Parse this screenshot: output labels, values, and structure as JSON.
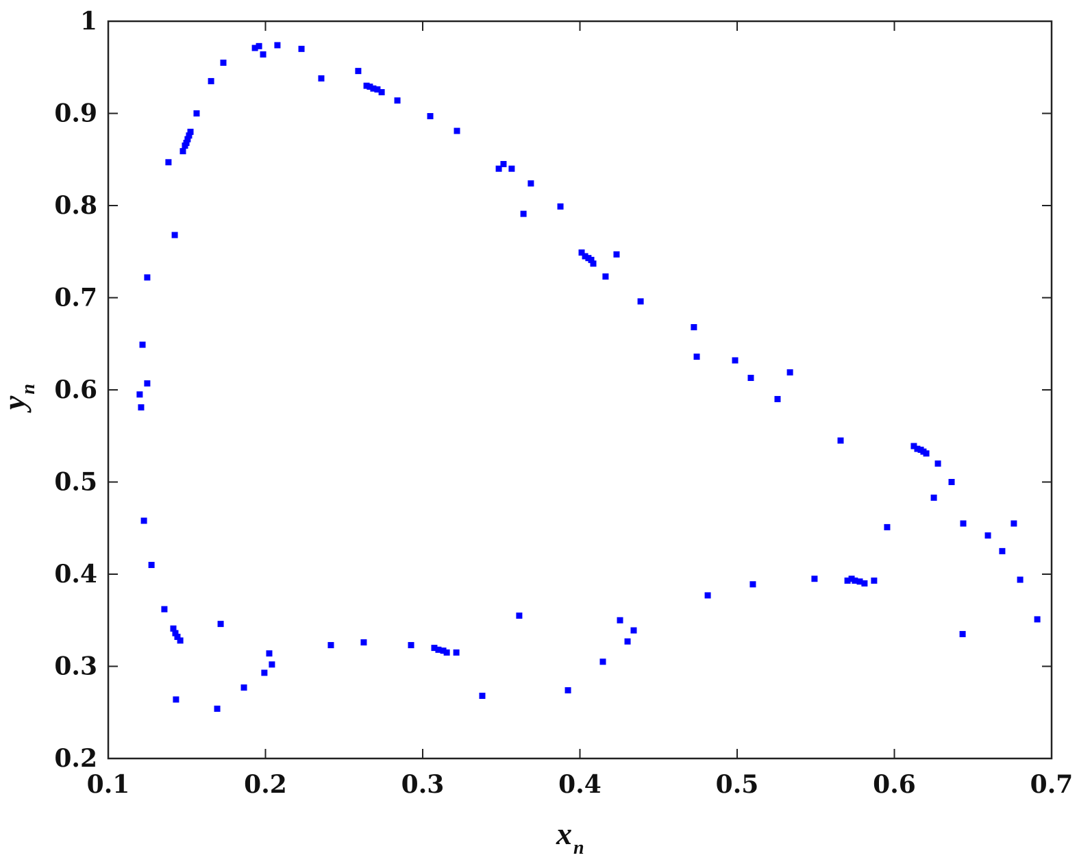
{
  "chart_data": {
    "type": "scatter",
    "title": "",
    "xlabel": "x",
    "xlabel_subscript": "n",
    "ylabel": "y",
    "ylabel_subscript": "n",
    "xlim": [
      0.1,
      0.7
    ],
    "ylim": [
      0.2,
      1.0
    ],
    "xticks": [
      "0.1",
      "0.2",
      "0.3",
      "0.4",
      "0.5",
      "0.6",
      "0.7"
    ],
    "yticks": [
      "0.2",
      "0.3",
      "0.4",
      "0.5",
      "0.6",
      "0.7",
      "0.8",
      "0.9",
      "1"
    ],
    "grid": false,
    "marker_color": "#0000ff",
    "marker": "square",
    "points": [
      [
        0.1933,
        0.971
      ],
      [
        0.1959,
        0.973
      ],
      [
        0.1985,
        0.964
      ],
      [
        0.2076,
        0.974
      ],
      [
        0.2229,
        0.97
      ],
      [
        0.2355,
        0.938
      ],
      [
        0.259,
        0.946
      ],
      [
        0.2643,
        0.93
      ],
      [
        0.2664,
        0.929
      ],
      [
        0.2686,
        0.927
      ],
      [
        0.2712,
        0.926
      ],
      [
        0.2739,
        0.923
      ],
      [
        0.2839,
        0.914
      ],
      [
        0.3048,
        0.897
      ],
      [
        0.3218,
        0.881
      ],
      [
        0.3484,
        0.84
      ],
      [
        0.3514,
        0.845
      ],
      [
        0.3566,
        0.84
      ],
      [
        0.3688,
        0.824
      ],
      [
        0.3641,
        0.791
      ],
      [
        0.3876,
        0.799
      ],
      [
        0.4011,
        0.749
      ],
      [
        0.4033,
        0.745
      ],
      [
        0.4054,
        0.743
      ],
      [
        0.4072,
        0.741
      ],
      [
        0.4085,
        0.737
      ],
      [
        0.4233,
        0.747
      ],
      [
        0.4163,
        0.723
      ],
      [
        0.4386,
        0.696
      ],
      [
        0.4725,
        0.668
      ],
      [
        0.4743,
        0.636
      ],
      [
        0.4987,
        0.632
      ],
      [
        0.5087,
        0.613
      ],
      [
        0.5257,
        0.59
      ],
      [
        0.5336,
        0.619
      ],
      [
        0.5658,
        0.545
      ],
      [
        0.6124,
        0.539
      ],
      [
        0.6146,
        0.536
      ],
      [
        0.6168,
        0.535
      ],
      [
        0.6185,
        0.533
      ],
      [
        0.6203,
        0.531
      ],
      [
        0.6277,
        0.52
      ],
      [
        0.6364,
        0.5
      ],
      [
        0.6251,
        0.483
      ],
      [
        0.6438,
        0.455
      ],
      [
        0.6595,
        0.442
      ],
      [
        0.676,
        0.455
      ],
      [
        0.6686,
        0.425
      ],
      [
        0.68,
        0.394
      ],
      [
        0.6909,
        0.351
      ],
      [
        0.6434,
        0.335
      ],
      [
        0.5954,
        0.451
      ],
      [
        0.5871,
        0.393
      ],
      [
        0.581,
        0.39
      ],
      [
        0.578,
        0.392
      ],
      [
        0.5749,
        0.393
      ],
      [
        0.5728,
        0.395
      ],
      [
        0.5702,
        0.393
      ],
      [
        0.5492,
        0.395
      ],
      [
        0.51,
        0.389
      ],
      [
        0.4813,
        0.377
      ],
      [
        0.4255,
        0.35
      ],
      [
        0.4342,
        0.339
      ],
      [
        0.4303,
        0.327
      ],
      [
        0.4146,
        0.305
      ],
      [
        0.3924,
        0.274
      ],
      [
        0.3614,
        0.355
      ],
      [
        0.3379,
        0.268
      ],
      [
        0.3214,
        0.315
      ],
      [
        0.3153,
        0.315
      ],
      [
        0.3131,
        0.317
      ],
      [
        0.31,
        0.318
      ],
      [
        0.3074,
        0.32
      ],
      [
        0.2926,
        0.323
      ],
      [
        0.2625,
        0.326
      ],
      [
        0.2416,
        0.323
      ],
      [
        0.2024,
        0.314
      ],
      [
        0.2041,
        0.302
      ],
      [
        0.1993,
        0.293
      ],
      [
        0.1863,
        0.277
      ],
      [
        0.1693,
        0.254
      ],
      [
        0.1715,
        0.346
      ],
      [
        0.1431,
        0.264
      ],
      [
        0.1458,
        0.328
      ],
      [
        0.144,
        0.332
      ],
      [
        0.1427,
        0.336
      ],
      [
        0.1414,
        0.341
      ],
      [
        0.1357,
        0.362
      ],
      [
        0.1275,
        0.41
      ],
      [
        0.1227,
        0.458
      ],
      [
        0.1209,
        0.581
      ],
      [
        0.12,
        0.595
      ],
      [
        0.1248,
        0.607
      ],
      [
        0.1218,
        0.649
      ],
      [
        0.1248,
        0.722
      ],
      [
        0.1423,
        0.768
      ],
      [
        0.1383,
        0.847
      ],
      [
        0.1475,
        0.859
      ],
      [
        0.1488,
        0.865
      ],
      [
        0.1497,
        0.868
      ],
      [
        0.1505,
        0.872
      ],
      [
        0.1514,
        0.876
      ],
      [
        0.1523,
        0.88
      ],
      [
        0.1562,
        0.9
      ],
      [
        0.1654,
        0.935
      ],
      [
        0.1732,
        0.955
      ]
    ]
  }
}
